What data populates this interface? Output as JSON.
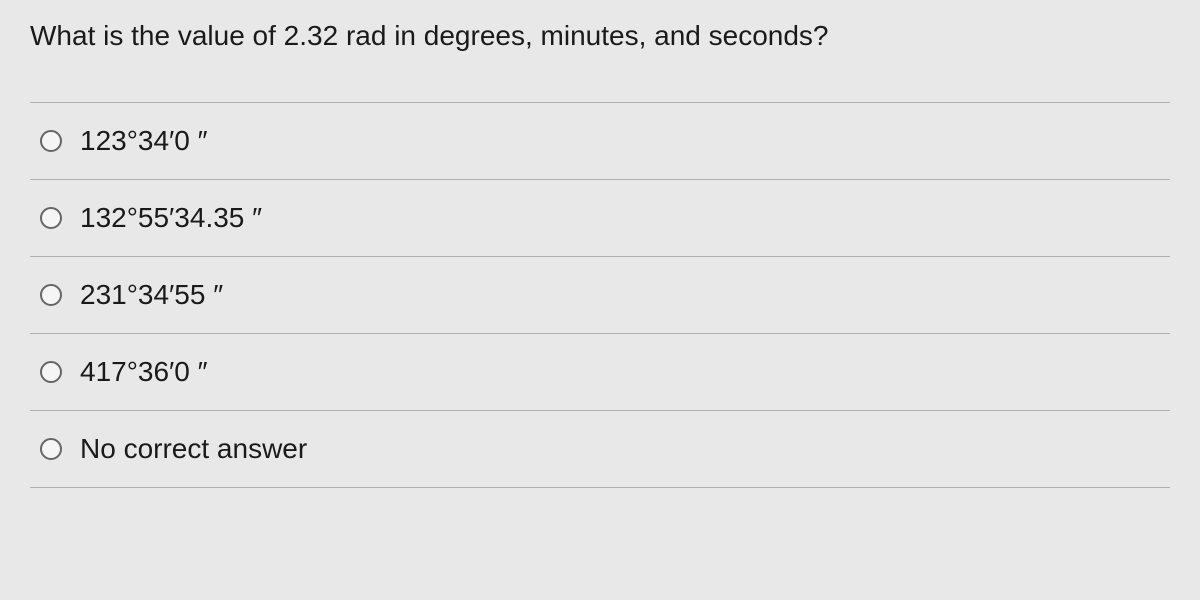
{
  "question": {
    "text": "What is the value of 2.32 rad in degrees, minutes, and seconds?"
  },
  "options": [
    {
      "label": "123°34′0 ″"
    },
    {
      "label": "132°55′34.35 ″"
    },
    {
      "label": "231°34′55 ″"
    },
    {
      "label": "417°36′0 ″"
    },
    {
      "label": "No correct answer"
    }
  ],
  "colors": {
    "background": "#e8e8e8",
    "text": "#1a1a1a",
    "border": "#b0b0b0",
    "radio_border": "#666"
  },
  "typography": {
    "question_fontsize": 28,
    "option_fontsize": 28,
    "font_family": "Arial"
  }
}
